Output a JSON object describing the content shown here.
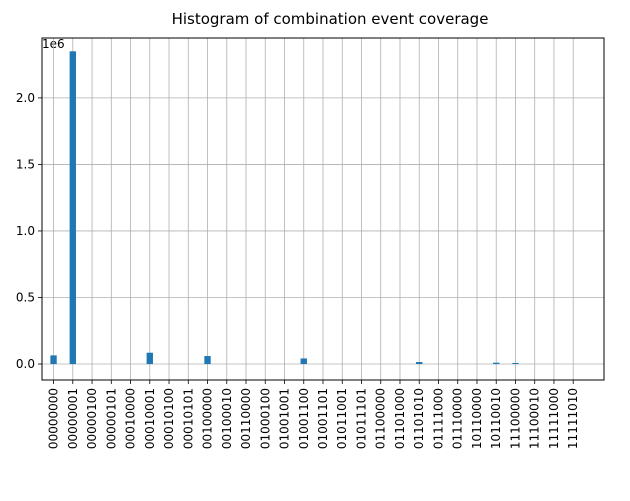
{
  "chart_data": {
    "type": "bar",
    "title": "Histogram of combination event coverage",
    "xlabel": "",
    "ylabel": "",
    "y_offset_label": "1e6",
    "ylim": [
      -0.12,
      2.45
    ],
    "yticks": [
      0.0,
      0.5,
      1.0,
      1.5,
      2.0
    ],
    "ytick_labels": [
      "0.0",
      "0.5",
      "1.0",
      "1.5",
      "2.0"
    ],
    "grid": true,
    "bar_color": "#1f77b4",
    "x_range": [
      -0.6,
      28.6
    ],
    "tick_labels": [
      "00000000",
      "00000001",
      "00000100",
      "00000101",
      "00010000",
      "00010001",
      "00010100",
      "00010101",
      "00100000",
      "00100010",
      "00110000",
      "01000100",
      "01001001",
      "01001100",
      "01001101",
      "01011001",
      "01011101",
      "01100000",
      "01101000",
      "01101010",
      "01111000",
      "01110000",
      "10110000",
      "10110010",
      "11100000",
      "11100010",
      "11111000",
      "11111010"
    ],
    "bins": [
      {
        "x": 0.0,
        "value": 0.065
      },
      {
        "x": 1.0,
        "value": 2.35
      },
      {
        "x": 5.0,
        "value": 0.085
      },
      {
        "x": 8.0,
        "value": 0.06
      },
      {
        "x": 13.0,
        "value": 0.042
      },
      {
        "x": 19.0,
        "value": 0.015
      },
      {
        "x": 23.0,
        "value": 0.01
      },
      {
        "x": 24.0,
        "value": 0.008
      }
    ]
  }
}
